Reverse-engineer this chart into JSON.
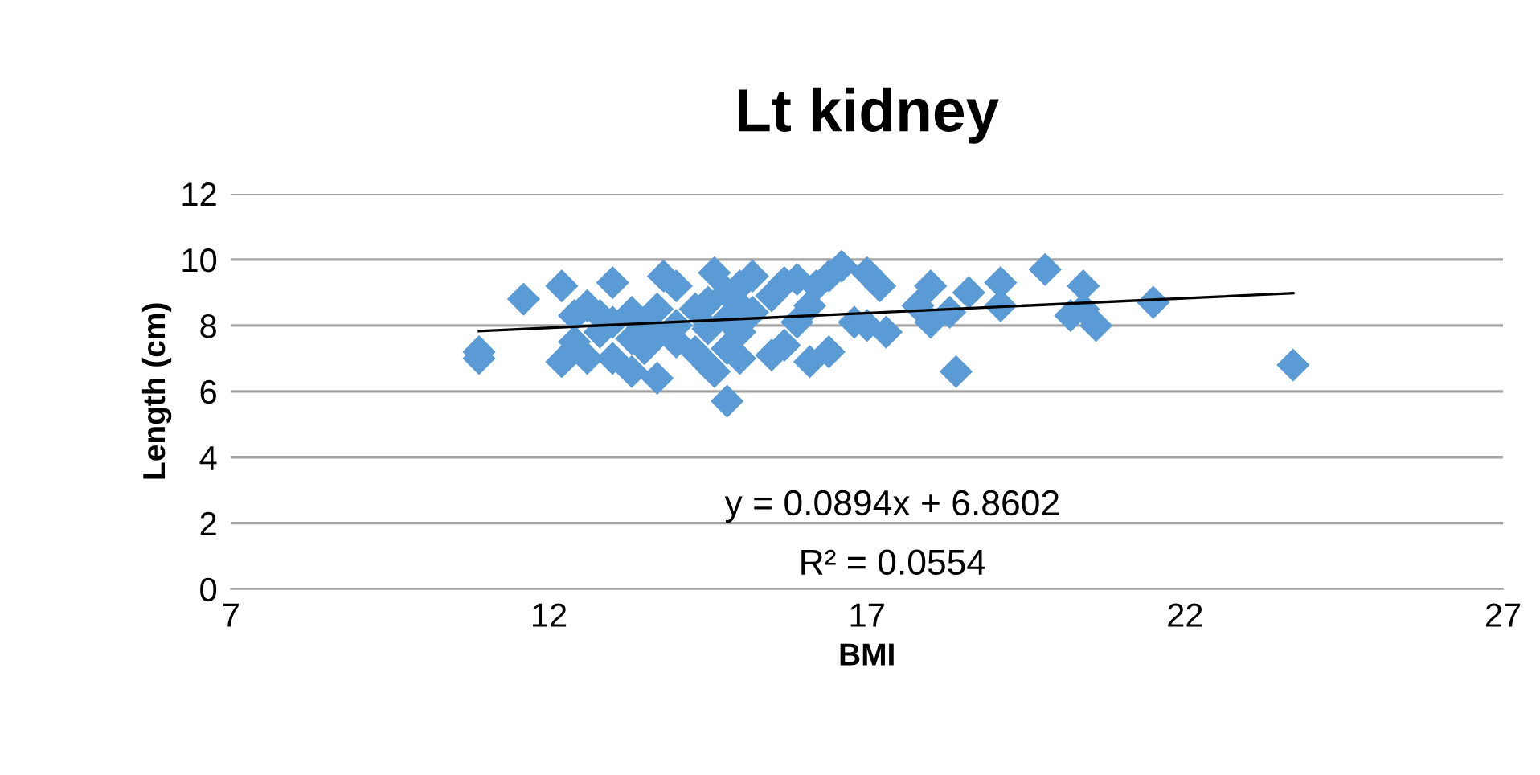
{
  "chart_data": {
    "type": "scatter",
    "title": "Lt kidney",
    "xlabel": "BMI",
    "ylabel": "Length (cm)",
    "xlim": [
      7,
      27
    ],
    "xticks": [
      7,
      12,
      17,
      22,
      27
    ],
    "ylim": [
      0,
      12
    ],
    "yticks": [
      0,
      2,
      4,
      6,
      8,
      10,
      12
    ],
    "grid": "y",
    "legend": false,
    "annotations": [
      "y = 0.0894x + 6.8602",
      "R² = 0.0554"
    ],
    "series": [
      {
        "marker": "diamond",
        "color": "#5b9bd5",
        "x": [
          10.9,
          10.9,
          11.6,
          12.2,
          12.2,
          12.4,
          12.4,
          12.6,
          12.6,
          12.8,
          12.8,
          13.0,
          13.0,
          13.0,
          13.3,
          13.3,
          13.3,
          13.5,
          13.5,
          13.7,
          13.7,
          13.7,
          13.8,
          14.0,
          14.0,
          14.0,
          14.3,
          14.3,
          14.5,
          14.5,
          14.5,
          14.6,
          14.6,
          14.8,
          14.8,
          14.8,
          14.8,
          15.0,
          15.0,
          15.0,
          15.0,
          15.2,
          15.2,
          15.5,
          15.5,
          15.7,
          15.7,
          15.9,
          15.9,
          16.1,
          16.1,
          16.2,
          16.4,
          16.4,
          16.6,
          16.8,
          17.0,
          17.0,
          17.2,
          17.3,
          17.8,
          18.0,
          18.0,
          18.3,
          18.4,
          18.6,
          19.1,
          19.1,
          19.8,
          20.2,
          20.4,
          20.4,
          20.6,
          21.5,
          23.7
        ],
        "values": [
          7.2,
          7.0,
          8.8,
          9.2,
          6.9,
          8.3,
          7.5,
          8.6,
          7.0,
          8.3,
          7.8,
          9.3,
          7.0,
          8.1,
          8.4,
          7.6,
          6.6,
          8.0,
          7.3,
          8.5,
          6.4,
          7.7,
          9.5,
          9.2,
          7.5,
          8.0,
          7.2,
          8.5,
          8.7,
          6.8,
          7.9,
          9.6,
          6.6,
          9.0,
          8.2,
          7.3,
          5.7,
          9.2,
          8.6,
          7.8,
          7.0,
          9.5,
          8.4,
          7.1,
          8.9,
          9.3,
          7.4,
          9.4,
          8.1,
          6.9,
          8.6,
          9.2,
          7.2,
          9.5,
          9.8,
          8.1,
          9.6,
          8.0,
          9.2,
          7.8,
          8.6,
          9.2,
          8.1,
          8.4,
          6.6,
          9.0,
          9.3,
          8.6,
          9.7,
          8.3,
          9.2,
          8.5,
          8.0,
          8.7,
          6.8
        ]
      },
      {
        "type": "line",
        "color": "#000000",
        "line_style": "solid",
        "marker": "none",
        "x": [
          10.9,
          23.7
        ],
        "values": [
          7.83,
          8.98
        ]
      }
    ]
  }
}
